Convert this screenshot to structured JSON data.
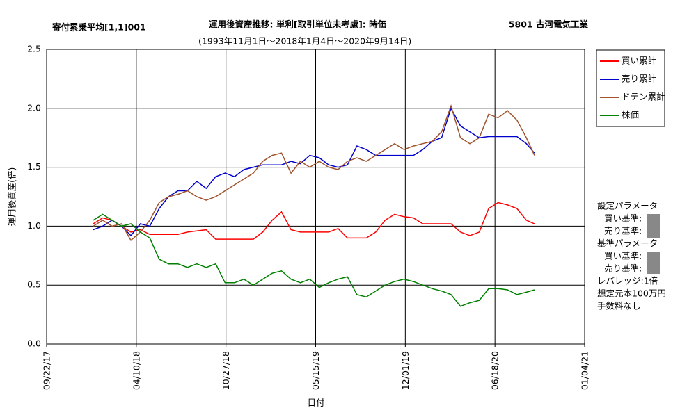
{
  "chart_data": {
    "type": "line",
    "header_left": "寄付累乗平均[1,1]001",
    "title": "運用後資産推移: 単利[取引単位未考慮]: 時価",
    "subtitle": "(1993年11月1日～2018年1月4日～2020年9月14日)",
    "header_right": "5801 古河電気工業",
    "x_label": "日付",
    "y_label": "運用後資産(倍)",
    "grid": true,
    "legend_position": "right",
    "xlim": [
      "2017-09-22",
      "2021-01-04"
    ],
    "xticks": [
      {
        "value": "2017-09-22",
        "label": "09/22/17"
      },
      {
        "value": "2018-04-10",
        "label": "04/10/18"
      },
      {
        "value": "2018-10-27",
        "label": "10/27/18"
      },
      {
        "value": "2019-05-15",
        "label": "05/15/19"
      },
      {
        "value": "2019-12-01",
        "label": "12/01/19"
      },
      {
        "value": "2020-06-18",
        "label": "06/18/20"
      },
      {
        "value": "2021-01-04",
        "label": "01/04/21"
      }
    ],
    "ylim": [
      0,
      2.5
    ],
    "yticks": [
      {
        "value": 0,
        "label": "0.0"
      },
      0.5,
      {
        "value": 1,
        "label": "1.0"
      },
      1.5,
      {
        "value": 2,
        "label": "2.0"
      },
      2.5
    ],
    "x": [
      "2018-01-04",
      "2018-01-25",
      "2018-02-15",
      "2018-03-08",
      "2018-03-29",
      "2018-04-19",
      "2018-05-10",
      "2018-05-31",
      "2018-06-21",
      "2018-07-12",
      "2018-08-02",
      "2018-08-23",
      "2018-09-13",
      "2018-10-04",
      "2018-10-25",
      "2018-11-15",
      "2018-12-06",
      "2018-12-27",
      "2019-01-17",
      "2019-02-07",
      "2019-02-28",
      "2019-03-21",
      "2019-04-11",
      "2019-05-02",
      "2019-05-23",
      "2019-06-13",
      "2019-07-04",
      "2019-07-25",
      "2019-08-15",
      "2019-09-05",
      "2019-09-26",
      "2019-10-17",
      "2019-11-07",
      "2019-11-28",
      "2019-12-19",
      "2020-01-09",
      "2020-01-30",
      "2020-02-20",
      "2020-03-12",
      "2020-04-02",
      "2020-04-23",
      "2020-05-14",
      "2020-06-04",
      "2020-06-25",
      "2020-07-16",
      "2020-08-06",
      "2020-08-27",
      "2020-09-14"
    ],
    "series": [
      {
        "name": "買い累計",
        "color": "#ff0000",
        "values": [
          1.02,
          1.07,
          1.05,
          1.0,
          0.95,
          0.97,
          0.93,
          0.93,
          0.93,
          0.93,
          0.95,
          0.96,
          0.97,
          0.89,
          0.89,
          0.89,
          0.89,
          0.89,
          0.95,
          1.05,
          1.12,
          0.97,
          0.95,
          0.95,
          0.95,
          0.95,
          0.98,
          0.9,
          0.9,
          0.9,
          0.95,
          1.05,
          1.1,
          1.08,
          1.07,
          1.02,
          1.02,
          1.02,
          1.02,
          0.95,
          0.92,
          0.95,
          1.15,
          1.2,
          1.18,
          1.15,
          1.05,
          1.02
        ]
      },
      {
        "name": "売り累計",
        "color": "#0000cc",
        "values": [
          0.97,
          1.0,
          1.05,
          1.0,
          0.92,
          1.02,
          1.0,
          1.15,
          1.25,
          1.3,
          1.3,
          1.38,
          1.32,
          1.42,
          1.45,
          1.42,
          1.48,
          1.5,
          1.52,
          1.52,
          1.52,
          1.55,
          1.53,
          1.6,
          1.58,
          1.52,
          1.5,
          1.52,
          1.68,
          1.65,
          1.6,
          1.6,
          1.6,
          1.6,
          1.6,
          1.65,
          1.72,
          1.75,
          2.0,
          1.85,
          1.8,
          1.75,
          1.76,
          1.76,
          1.76,
          1.76,
          1.7,
          1.62
        ]
      },
      {
        "name": "ドテン累計",
        "color": "#a0522d",
        "values": [
          1.0,
          1.05,
          1.0,
          1.02,
          0.88,
          0.95,
          1.05,
          1.2,
          1.25,
          1.27,
          1.3,
          1.25,
          1.22,
          1.25,
          1.3,
          1.35,
          1.4,
          1.45,
          1.55,
          1.6,
          1.62,
          1.45,
          1.55,
          1.5,
          1.55,
          1.5,
          1.48,
          1.55,
          1.58,
          1.55,
          1.6,
          1.65,
          1.7,
          1.65,
          1.68,
          1.7,
          1.72,
          1.8,
          2.02,
          1.75,
          1.7,
          1.75,
          1.95,
          1.92,
          1.98,
          1.9,
          1.75,
          1.6
        ]
      },
      {
        "name": "株価",
        "color": "#008000",
        "values": [
          1.05,
          1.1,
          1.05,
          1.0,
          1.02,
          0.95,
          0.9,
          0.72,
          0.68,
          0.68,
          0.65,
          0.68,
          0.65,
          0.68,
          0.52,
          0.52,
          0.55,
          0.5,
          0.55,
          0.6,
          0.62,
          0.55,
          0.52,
          0.55,
          0.48,
          0.52,
          0.55,
          0.57,
          0.42,
          0.4,
          0.45,
          0.5,
          0.53,
          0.55,
          0.53,
          0.5,
          0.47,
          0.45,
          0.42,
          0.32,
          0.35,
          0.37,
          0.47,
          0.47,
          0.46,
          0.42,
          0.44,
          0.46
        ]
      }
    ],
    "side_notes": [
      "設定パラメータ",
      "買い基準:",
      "売り基準:",
      "基準パラメータ",
      "買い基準:",
      "売り基準:",
      "レバレッジ:1倍",
      "想定元本100万円",
      "手数料なし"
    ]
  }
}
